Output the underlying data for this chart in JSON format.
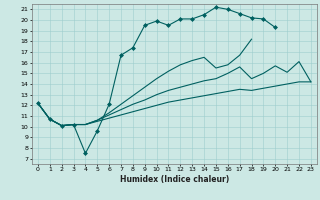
{
  "xlabel": "Humidex (Indice chaleur)",
  "bg_color": "#cce8e4",
  "line_color": "#006060",
  "xlim": [
    -0.5,
    23.5
  ],
  "ylim": [
    6.5,
    21.5
  ],
  "xticks": [
    0,
    1,
    2,
    3,
    4,
    5,
    6,
    7,
    8,
    9,
    10,
    11,
    12,
    13,
    14,
    15,
    16,
    17,
    18,
    19,
    20,
    21,
    22,
    23
  ],
  "yticks": [
    7,
    8,
    9,
    10,
    11,
    12,
    13,
    14,
    15,
    16,
    17,
    18,
    19,
    20,
    21
  ],
  "series": [
    {
      "x": [
        0,
        1,
        2,
        3,
        4,
        5,
        6,
        7,
        8,
        9,
        10,
        11,
        12,
        13,
        14,
        15,
        16,
        17,
        18,
        19,
        20
      ],
      "y": [
        12.2,
        10.7,
        10.1,
        10.2,
        7.5,
        9.6,
        12.1,
        16.7,
        17.4,
        19.5,
        19.9,
        19.5,
        20.1,
        20.1,
        20.5,
        21.2,
        21.0,
        20.6,
        20.2,
        20.1,
        19.3
      ],
      "marker": true
    },
    {
      "x": [
        0,
        1,
        2,
        3,
        4,
        5,
        6,
        7,
        8,
        9,
        10,
        11,
        12,
        13,
        14,
        15,
        16,
        17,
        18
      ],
      "y": [
        12.2,
        10.7,
        10.1,
        10.2,
        10.2,
        10.6,
        11.3,
        12.1,
        12.9,
        13.7,
        14.5,
        15.2,
        15.8,
        16.2,
        16.5,
        15.5,
        15.8,
        16.7,
        18.2
      ],
      "marker": false
    },
    {
      "x": [
        0,
        1,
        2,
        3,
        4,
        5,
        6,
        7,
        8,
        9,
        10,
        11,
        12,
        13,
        14,
        15,
        16,
        17,
        18,
        19,
        20,
        21,
        22,
        23
      ],
      "y": [
        12.2,
        10.7,
        10.1,
        10.2,
        10.2,
        10.6,
        11.1,
        11.6,
        12.1,
        12.5,
        13.0,
        13.4,
        13.7,
        14.0,
        14.3,
        14.5,
        15.0,
        15.6,
        14.5,
        15.0,
        15.7,
        15.1,
        16.1,
        14.2
      ],
      "marker": false
    },
    {
      "x": [
        0,
        1,
        2,
        3,
        4,
        5,
        6,
        7,
        8,
        9,
        10,
        11,
        12,
        13,
        14,
        15,
        16,
        17,
        18,
        19,
        20,
        21,
        22,
        23
      ],
      "y": [
        12.2,
        10.7,
        10.1,
        10.2,
        10.2,
        10.5,
        10.8,
        11.1,
        11.4,
        11.7,
        12.0,
        12.3,
        12.5,
        12.7,
        12.9,
        13.1,
        13.3,
        13.5,
        13.4,
        13.6,
        13.8,
        14.0,
        14.2,
        14.2
      ],
      "marker": false
    }
  ]
}
